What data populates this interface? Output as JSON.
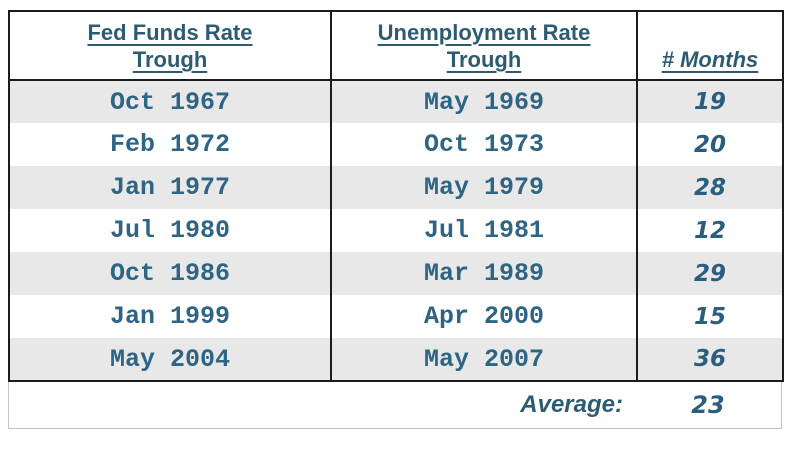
{
  "colors": {
    "header_text": "#2d5c72",
    "date_text": "#2e6484",
    "number_text": "#2b5e7e",
    "alt_row_bg": "#e8e8e8",
    "grid_border": "#1c1c1c",
    "footer_border": "#c4c4c4",
    "background": "#ffffff"
  },
  "table": {
    "headers": {
      "col1": {
        "line1": "Fed Funds Rate",
        "line2": "Trough"
      },
      "col2": {
        "line1": "Unemployment Rate",
        "line2": "Trough"
      },
      "col3": {
        "label": "# Months"
      }
    },
    "rows": [
      [
        "Oct 1967",
        "May 1969",
        "19"
      ],
      [
        "Feb 1972",
        "Oct 1973",
        "20"
      ],
      [
        "Jan 1977",
        "May 1979",
        "28"
      ],
      [
        "Jul 1980",
        "Jul 1981",
        "12"
      ],
      [
        "Oct 1986",
        "Mar 1989",
        "29"
      ],
      [
        "Jan 1999",
        "Apr 2000",
        "15"
      ],
      [
        "May 2004",
        "May 2007",
        "36"
      ]
    ],
    "footer": {
      "label": "Average:",
      "value": "23"
    }
  },
  "chart_data": {
    "type": "table",
    "title": "",
    "columns": [
      "Fed Funds Rate Trough",
      "Unemployment Rate Trough",
      "# Months"
    ],
    "rows": [
      {
        "fed_funds_rate_trough": "Oct 1967",
        "unemployment_rate_trough": "May 1969",
        "months": 19
      },
      {
        "fed_funds_rate_trough": "Feb 1972",
        "unemployment_rate_trough": "Oct 1973",
        "months": 20
      },
      {
        "fed_funds_rate_trough": "Jan 1977",
        "unemployment_rate_trough": "May 1979",
        "months": 28
      },
      {
        "fed_funds_rate_trough": "Jul 1980",
        "unemployment_rate_trough": "Jul 1981",
        "months": 12
      },
      {
        "fed_funds_rate_trough": "Oct 1986",
        "unemployment_rate_trough": "Mar 1989",
        "months": 29
      },
      {
        "fed_funds_rate_trough": "Jan 1999",
        "unemployment_rate_trough": "Apr 2000",
        "months": 15
      },
      {
        "fed_funds_rate_trough": "May 2004",
        "unemployment_rate_trough": "May 2007",
        "months": 36
      }
    ],
    "summary": {
      "label": "Average:",
      "months": 23
    },
    "layout_hints": {
      "alternating_row_shading": true,
      "months_column_italic": true,
      "summary_row_outside_grid": true
    }
  }
}
